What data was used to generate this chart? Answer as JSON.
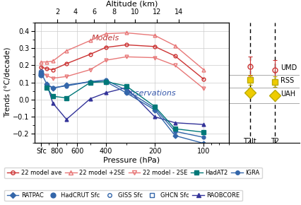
{
  "title_top": "Altitude (km)",
  "xlabel": "Pressure (hPa)",
  "ylabel": "Trends (°C/decade)",
  "ylim": [
    -0.25,
    0.45
  ],
  "model_x": [
    1000,
    925,
    850,
    700,
    500,
    400,
    300,
    200,
    150,
    100
  ],
  "model_ave": [
    0.19,
    0.18,
    0.175,
    0.21,
    0.265,
    0.305,
    0.32,
    0.31,
    0.255,
    0.12
  ],
  "model_p2se": [
    0.22,
    0.22,
    0.225,
    0.285,
    0.345,
    0.385,
    0.39,
    0.375,
    0.315,
    0.175
  ],
  "model_m2se": [
    0.16,
    0.14,
    0.125,
    0.135,
    0.175,
    0.23,
    0.25,
    0.245,
    0.2,
    0.065
  ],
  "HadAT2_x": [
    925,
    850,
    700,
    500,
    400,
    300,
    200,
    150,
    100
  ],
  "HadAT2_y": [
    0.07,
    0.02,
    0.01,
    0.1,
    0.105,
    0.08,
    -0.04,
    -0.17,
    -0.19
  ],
  "IGRA_x": [
    925,
    850,
    700,
    500,
    400,
    300,
    200,
    150,
    100
  ],
  "IGRA_y": [
    0.09,
    0.07,
    0.08,
    0.105,
    0.115,
    0.055,
    -0.05,
    -0.185,
    -0.22
  ],
  "RATPAC_x": [
    1000,
    925,
    850,
    700,
    500,
    400,
    300,
    200,
    150,
    100
  ],
  "RATPAC_y": [
    0.155,
    0.09,
    0.065,
    0.085,
    0.105,
    0.105,
    0.04,
    -0.06,
    -0.21,
    -0.255
  ],
  "HadCRUT_x": [
    1000
  ],
  "HadCRUT_y": [
    0.145
  ],
  "GISS_x": [
    1000
  ],
  "GISS_y": [
    0.165
  ],
  "GHCN_x": [
    1000
  ],
  "GHCN_y": [
    0.155
  ],
  "RAOBCORE_x": [
    925,
    850,
    700,
    500,
    400,
    300,
    200,
    150,
    100
  ],
  "RAOBCORE_y": [
    0.095,
    -0.02,
    -0.115,
    0.005,
    0.04,
    0.07,
    -0.1,
    -0.135,
    -0.145
  ],
  "model_ave_color": "#cc3333",
  "model_band_color": "#e87878",
  "HadAT2_color": "#007878",
  "obs_blue": "#3366aa",
  "obs_purple": "#333399",
  "UMD_T2lt": 0.195,
  "UMD_T2": 0.175,
  "UMD_err": 0.055,
  "RSS_T2lt": 0.115,
  "RSS_T2": 0.105,
  "RSS_err": 0.03,
  "UAH_T2lt": 0.04,
  "UAH_T2": 0.025,
  "alt_hPa": [
    795,
    617,
    472,
    356,
    265,
    194,
    142
  ],
  "alt_km": [
    "2",
    "4",
    "6",
    "8",
    "10",
    "12",
    "14"
  ],
  "pressure_ticks": [
    1000,
    800,
    600,
    400,
    200,
    100
  ],
  "pressure_labels": [
    "Sfc",
    "800",
    "600",
    "400",
    "200",
    "100"
  ]
}
